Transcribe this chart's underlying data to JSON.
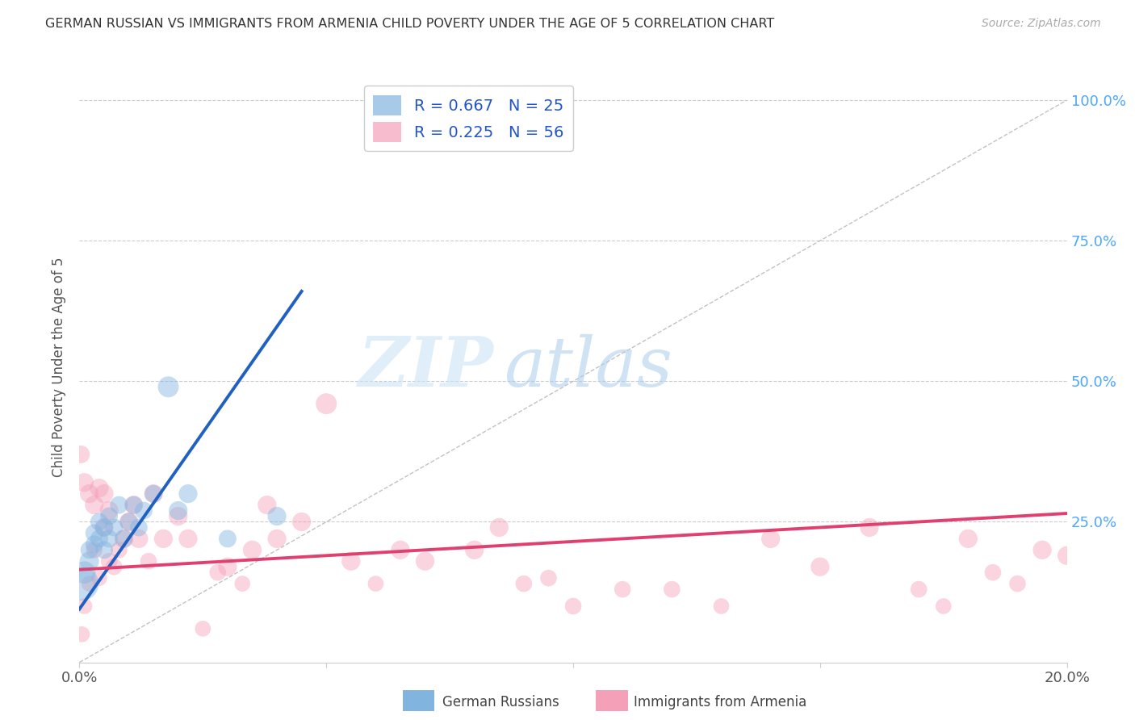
{
  "title": "GERMAN RUSSIAN VS IMMIGRANTS FROM ARMENIA CHILD POVERTY UNDER THE AGE OF 5 CORRELATION CHART",
  "source": "Source: ZipAtlas.com",
  "ylabel": "Child Poverty Under the Age of 5",
  "right_ytick_labels": [
    "100.0%",
    "75.0%",
    "50.0%",
    "25.0%"
  ],
  "right_ytick_values": [
    1.0,
    0.75,
    0.5,
    0.25
  ],
  "xlim": [
    0.0,
    0.2
  ],
  "ylim": [
    0.0,
    1.05
  ],
  "legend_blue_r": "R = 0.667",
  "legend_blue_n": "N = 25",
  "legend_pink_r": "R = 0.225",
  "legend_pink_n": "N = 56",
  "legend_label_blue": "German Russians",
  "legend_label_pink": "Immigrants from Armenia",
  "blue_color": "#82b4e0",
  "pink_color": "#f4a0b8",
  "blue_line_color": "#2060c0",
  "pink_line_color": "#e04070",
  "watermark_zip": "ZIP",
  "watermark_atlas": "atlas",
  "blue_scatter_x": [
    0.0005,
    0.001,
    0.002,
    0.002,
    0.003,
    0.003,
    0.004,
    0.004,
    0.005,
    0.005,
    0.006,
    0.006,
    0.007,
    0.008,
    0.009,
    0.01,
    0.011,
    0.012,
    0.013,
    0.015,
    0.018,
    0.02,
    0.022,
    0.03,
    0.04
  ],
  "blue_scatter_y": [
    0.14,
    0.16,
    0.18,
    0.2,
    0.21,
    0.23,
    0.22,
    0.25,
    0.2,
    0.24,
    0.22,
    0.26,
    0.24,
    0.28,
    0.22,
    0.25,
    0.28,
    0.24,
    0.27,
    0.3,
    0.49,
    0.27,
    0.3,
    0.22,
    0.26
  ],
  "blue_scatter_sizes": [
    900,
    400,
    300,
    250,
    250,
    250,
    250,
    250,
    250,
    250,
    250,
    250,
    250,
    250,
    250,
    250,
    250,
    250,
    250,
    250,
    350,
    280,
    280,
    250,
    280
  ],
  "pink_scatter_x": [
    0.0003,
    0.0005,
    0.001,
    0.001,
    0.002,
    0.002,
    0.003,
    0.003,
    0.004,
    0.004,
    0.005,
    0.005,
    0.006,
    0.006,
    0.007,
    0.008,
    0.009,
    0.01,
    0.011,
    0.012,
    0.014,
    0.015,
    0.017,
    0.02,
    0.022,
    0.025,
    0.028,
    0.03,
    0.033,
    0.035,
    0.038,
    0.04,
    0.045,
    0.05,
    0.055,
    0.06,
    0.065,
    0.07,
    0.08,
    0.085,
    0.09,
    0.095,
    0.1,
    0.11,
    0.12,
    0.13,
    0.14,
    0.15,
    0.16,
    0.17,
    0.175,
    0.18,
    0.185,
    0.19,
    0.195,
    0.2
  ],
  "pink_scatter_y": [
    0.37,
    0.05,
    0.32,
    0.1,
    0.3,
    0.14,
    0.28,
    0.2,
    0.31,
    0.15,
    0.24,
    0.3,
    0.27,
    0.18,
    0.17,
    0.2,
    0.22,
    0.25,
    0.28,
    0.22,
    0.18,
    0.3,
    0.22,
    0.26,
    0.22,
    0.06,
    0.16,
    0.17,
    0.14,
    0.2,
    0.28,
    0.22,
    0.25,
    0.46,
    0.18,
    0.14,
    0.2,
    0.18,
    0.2,
    0.24,
    0.14,
    0.15,
    0.1,
    0.13,
    0.13,
    0.1,
    0.22,
    0.17,
    0.24,
    0.13,
    0.1,
    0.22,
    0.16,
    0.14,
    0.2,
    0.19
  ],
  "pink_scatter_sizes": [
    250,
    200,
    280,
    200,
    280,
    200,
    280,
    220,
    280,
    200,
    280,
    280,
    280,
    220,
    220,
    220,
    280,
    280,
    280,
    280,
    220,
    280,
    280,
    280,
    280,
    200,
    220,
    280,
    200,
    280,
    280,
    280,
    280,
    350,
    280,
    200,
    280,
    280,
    280,
    280,
    220,
    220,
    220,
    220,
    220,
    200,
    280,
    280,
    280,
    220,
    200,
    280,
    220,
    220,
    280,
    280
  ],
  "blue_trend_x": [
    0.0,
    0.045
  ],
  "blue_trend_y": [
    0.095,
    0.66
  ],
  "pink_trend_x": [
    0.0,
    0.2
  ],
  "pink_trend_y": [
    0.165,
    0.265
  ],
  "diag_line_x": [
    0.0,
    0.2
  ],
  "diag_line_y": [
    0.0,
    1.0
  ],
  "grid_yticks": [
    0.25,
    0.5,
    0.75,
    1.0
  ],
  "background_color": "#ffffff",
  "grid_color": "#cccccc",
  "right_axis_color": "#4da6ff",
  "title_color": "#333333",
  "source_color": "#aaaaaa",
  "legend_text_color": "#2255cc"
}
